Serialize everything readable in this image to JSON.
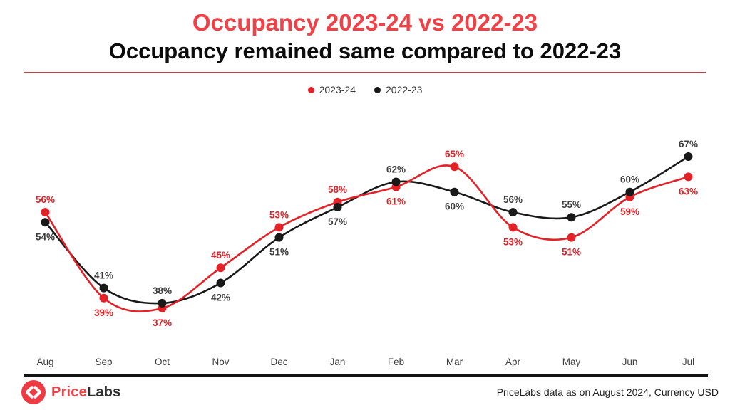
{
  "header": {
    "title": "Occupancy 2023-24 vs 2022-23",
    "subtitle": "Occupancy remained same compared to 2022-23"
  },
  "legend": {
    "items": [
      {
        "label": "2023-24",
        "color": "#e32228"
      },
      {
        "label": "2022-23",
        "color": "#191919"
      }
    ]
  },
  "chart_data": {
    "type": "line",
    "title": "Occupancy 2023-24 vs 2022-23",
    "subtitle": "Occupancy remained same compared to 2022-23",
    "categories": [
      "Aug",
      "Sep",
      "Oct",
      "Nov",
      "Dec",
      "Jan",
      "Feb",
      "Mar",
      "Apr",
      "May",
      "Jun",
      "Jul"
    ],
    "series": [
      {
        "name": "2023-24",
        "color": "#e32228",
        "label_color": "#e32228",
        "values": [
          56,
          39,
          37,
          45,
          53,
          58,
          61,
          65,
          53,
          51,
          59,
          63
        ]
      },
      {
        "name": "2022-23",
        "color": "#191919",
        "label_color": "#3e3e3e",
        "values": [
          54,
          41,
          38,
          42,
          51,
          57,
          62,
          60,
          56,
          55,
          60,
          67
        ]
      }
    ],
    "value_suffix": "%",
    "ylim": [
      33,
      71
    ],
    "grid": false,
    "legend_position": "top-center",
    "curve": "smooth",
    "xlabel": "",
    "ylabel": ""
  },
  "footer": {
    "brand": {
      "first": "Price",
      "second": "Labs"
    },
    "note": "PriceLabs data as on August 2024, Currency USD"
  },
  "colors": {
    "title_red": "#ef4146",
    "divider_red": "#b0494b",
    "axis_black": "#141414",
    "month_label": "#3e3e3e",
    "legend_text": "#3a3a3a",
    "brand_red": "#ef4146",
    "brand_dark": "#2e2e2e",
    "note_text": "#1f1f1f",
    "logo_bg": "#ee3b43",
    "logo_glyph": "#ffffff"
  }
}
